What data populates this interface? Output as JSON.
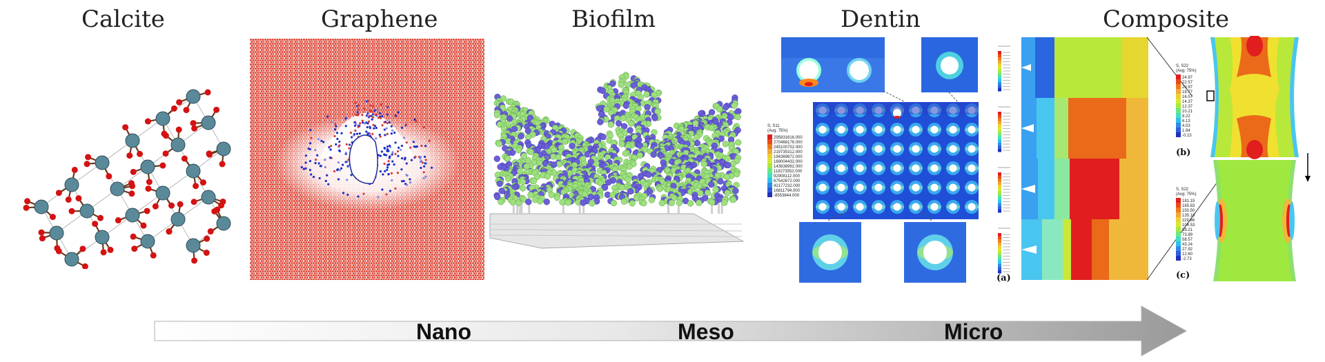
{
  "panels": {
    "calcite": "Calcite",
    "graphene": "Graphene",
    "biofilm": "Biofilm",
    "dentin": "Dentin",
    "composite": "Composite"
  },
  "scale": {
    "nano": "Nano",
    "meso": "Meso",
    "micro": "Micro"
  },
  "dentin_legend": {
    "header": "S, S11",
    "sub": "(Avg: 75%)",
    "values": [
      "295831616.000",
      "270466176.000",
      "245100752.000",
      "219735312.000",
      "194369872.000",
      "169004432.000",
      "143638992.000",
      "118273552.000",
      "92908112.000",
      "67542672.000",
      "42177232.000",
      "16811794.000",
      "-8553644.000"
    ]
  },
  "composite_legend_b": {
    "header": "S, S22",
    "sub": "(Avg: 75%)",
    "values": [
      "24.97",
      "22.57",
      "20.97",
      "18.77",
      "16.57",
      "14.37",
      "12.37",
      "10.21",
      "8.22",
      "6.13",
      "4.03",
      "1.94",
      "-0.15"
    ]
  },
  "composite_legend_c": {
    "header": "S, S22",
    "sub": "(Avg: 75%)",
    "values": [
      "181.15",
      "165.83",
      "150.50",
      "135.18",
      "119.86",
      "104.53",
      "89.21",
      "73.89",
      "58.57",
      "43.24",
      "27.92",
      "12.60",
      "-2.73"
    ]
  },
  "composite_labels": {
    "a": "(a)",
    "b": "(b)",
    "c": "(c)"
  },
  "colors": {
    "graphene": "#e03a2a",
    "biofilm_green": "#9ee07e",
    "biofilm_blue": "#6a5fd8",
    "contour_blue": "#1f5fe6",
    "arrow_dark": "#9a9a9a"
  }
}
